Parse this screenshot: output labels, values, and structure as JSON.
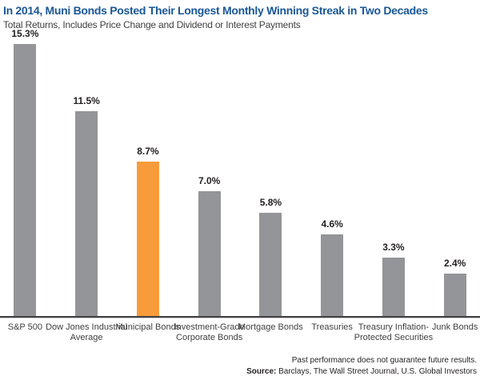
{
  "header": {
    "title": "In 2014, Muni Bonds Posted Their Longest Monthly Winning Streak in Two Decades",
    "subtitle": "Total Returns, Includes Price Change and Dividend or Interest Payments"
  },
  "chart_data": {
    "type": "bar",
    "title": "In 2014, Muni Bonds Posted Their Longest Monthly Winning Streak in Two Decades",
    "subtitle": "Total Returns, Includes Price Change and Dividend or Interest Payments",
    "categories": [
      "S&P 500",
      "Dow Jones Industrial Average",
      "Municipal Bonds",
      "Investment-Grade Corporate Bonds",
      "Mortgage Bonds",
      "Treasuries",
      "Treasury Inflation-Protected Securities",
      "Junk Bonds"
    ],
    "values": [
      15.3,
      11.5,
      8.7,
      7.0,
      5.8,
      4.6,
      3.3,
      2.4
    ],
    "value_labels": [
      "15.3%",
      "11.5%",
      "8.7%",
      "7.0%",
      "5.8%",
      "4.6%",
      "3.3%",
      "2.4%"
    ],
    "highlight_index": 2,
    "highlighted_category": "Municipal Bonds",
    "bar_color": "#939598",
    "highlight_color": "#F89C3B",
    "xlabel": "",
    "ylabel": "",
    "ylim": [
      0,
      15.3
    ],
    "grid": false,
    "legend": false
  },
  "footer": {
    "disclaimer": "Past performance does not guarantee future results.",
    "source_label": "Source:",
    "source_text": " Barclays, The Wall Street Journal, U.S. Global Investors"
  },
  "colors": {
    "title_blue": "#1A5796",
    "bar_gray": "#939598",
    "bar_orange": "#F89C3B",
    "axis_dark": "#414042",
    "axis_light": "#C7C8CA",
    "text_dark": "#231F20"
  }
}
